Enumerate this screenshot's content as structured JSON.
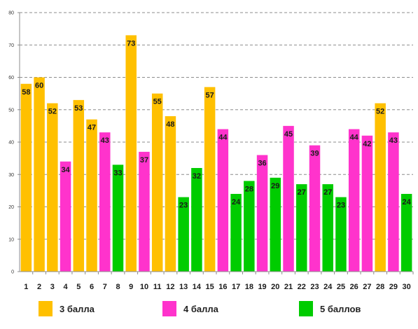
{
  "chart_data": {
    "type": "bar",
    "categories": [
      "1",
      "2",
      "3",
      "4",
      "5",
      "6",
      "7",
      "8",
      "9",
      "10",
      "11",
      "12",
      "13",
      "14",
      "15",
      "16",
      "17",
      "18",
      "19",
      "20",
      "21",
      "22",
      "23",
      "24",
      "25",
      "26",
      "27",
      "28",
      "29",
      "30"
    ],
    "values": [
      58,
      60,
      52,
      34,
      53,
      47,
      43,
      33,
      73,
      37,
      55,
      48,
      23,
      32,
      57,
      44,
      24,
      28,
      36,
      29,
      45,
      27,
      39,
      27,
      23,
      44,
      42,
      52,
      43,
      24
    ],
    "groups": [
      "3",
      "3",
      "3",
      "4",
      "3",
      "3",
      "4",
      "5",
      "3",
      "4",
      "3",
      "3",
      "5",
      "5",
      "3",
      "4",
      "5",
      "5",
      "4",
      "5",
      "4",
      "5",
      "4",
      "5",
      "5",
      "4",
      "4",
      "3",
      "4",
      "5"
    ],
    "ylim": [
      0,
      80
    ],
    "yticks": [
      0,
      10,
      20,
      30,
      40,
      50,
      60,
      70,
      80
    ],
    "grid": "horizontal-dashed",
    "legend_position": "bottom",
    "legend": [
      {
        "key": "3",
        "label": "3 балла",
        "color": "#FFC000"
      },
      {
        "key": "4",
        "label": "4 балла",
        "color": "#FF33CC"
      },
      {
        "key": "5",
        "label": "5 баллов",
        "color": "#00CC00"
      }
    ]
  }
}
